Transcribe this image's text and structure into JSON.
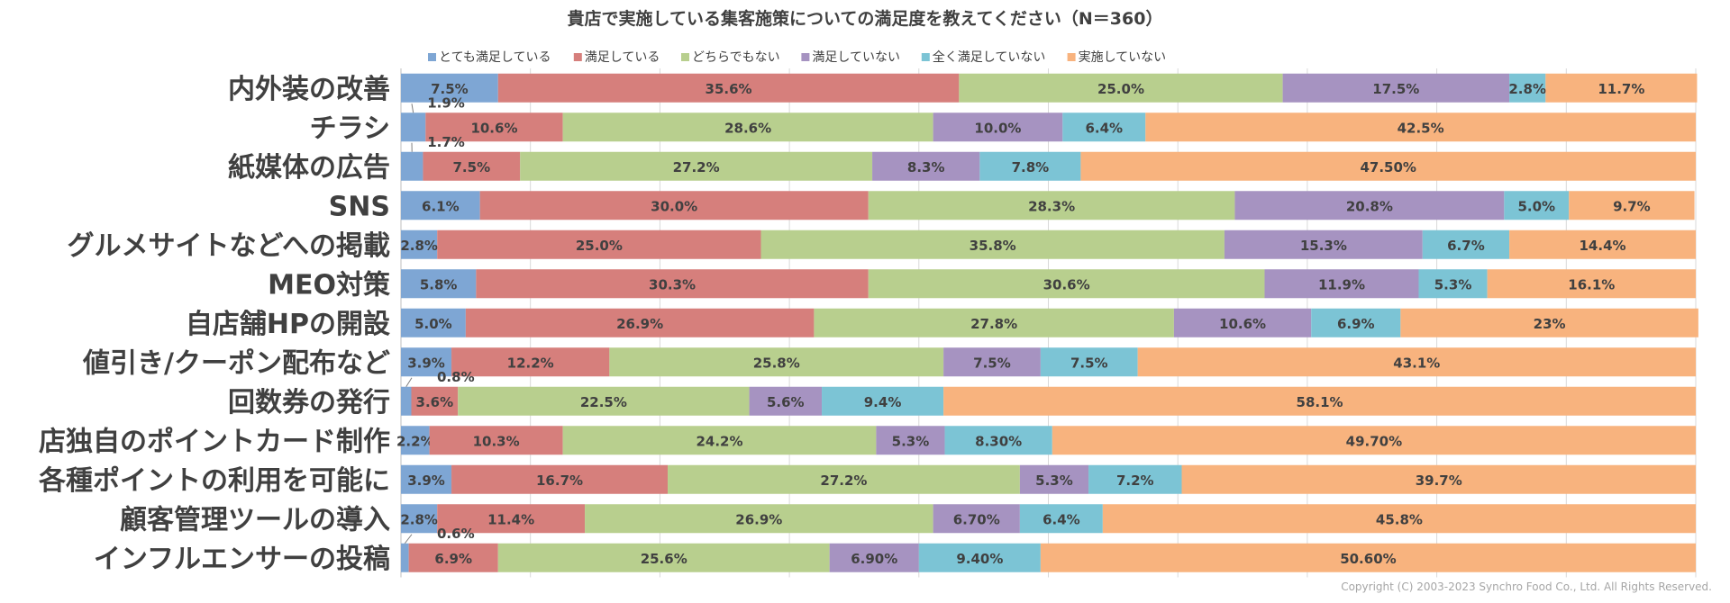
{
  "chart_data": {
    "type": "bar",
    "orientation": "horizontal",
    "stacked": true,
    "title": "貴店で実施している集客施策についての満足度を教えてください（N＝360）",
    "xlim": [
      0,
      100
    ],
    "grid": true,
    "legend_position": "top",
    "copyright": "Copyright (C) 2003-2023 Synchro Food Co., Ltd. All Rights Reserved.",
    "categories": [
      "内外装の改善",
      "チラシ",
      "紙媒体の広告",
      "SNS",
      "グルメサイトなどへの掲載",
      "MEO対策",
      "自店舗HPの開設",
      "値引き/クーポン配布など",
      "回数券の発行",
      "店独自のポイントカード制作",
      "各種ポイントの利用を可能に",
      "顧客管理ツールの導入",
      "インフルエンサーの投稿"
    ],
    "series": [
      {
        "name": "とても満足している",
        "color": "#7ea6d4",
        "values": [
          7.5,
          1.9,
          1.7,
          6.1,
          2.8,
          5.8,
          5.0,
          3.9,
          0.8,
          2.2,
          3.9,
          2.8,
          0.6
        ],
        "labels": [
          "7.5%",
          "1.9%",
          "1.7%",
          "6.1%",
          "2.8%",
          "5.8%",
          "5.0%",
          "3.9%",
          "0.8%",
          "2.2%",
          "3.9%",
          "2.8%",
          "0.6%"
        ]
      },
      {
        "name": "満足している",
        "color": "#d67f7c",
        "values": [
          35.6,
          10.6,
          7.5,
          30.0,
          25.0,
          30.3,
          26.9,
          12.2,
          3.6,
          10.3,
          16.7,
          11.4,
          6.9
        ],
        "labels": [
          "35.6%",
          "10.6%",
          "7.5%",
          "30.0%",
          "25.0%",
          "30.3%",
          "26.9%",
          "12.2%",
          "3.6%",
          "10.3%",
          "16.7%",
          "11.4%",
          "6.9%"
        ]
      },
      {
        "name": "どちらでもない",
        "color": "#b8cf8e",
        "values": [
          25.0,
          28.6,
          27.2,
          28.3,
          35.8,
          30.6,
          27.8,
          25.8,
          22.5,
          24.2,
          27.2,
          26.9,
          25.6
        ],
        "labels": [
          "25.0%",
          "28.6%",
          "27.2%",
          "28.3%",
          "35.8%",
          "30.6%",
          "27.8%",
          "25.8%",
          "22.5%",
          "24.2%",
          "27.2%",
          "26.9%",
          "25.6%"
        ]
      },
      {
        "name": "満足していない",
        "color": "#a693c1",
        "values": [
          17.5,
          10.0,
          8.3,
          20.8,
          15.3,
          11.9,
          10.6,
          7.5,
          5.6,
          5.3,
          5.3,
          6.7,
          6.9
        ],
        "labels": [
          "17.5%",
          "10.0%",
          "8.3%",
          "20.8%",
          "15.3%",
          "11.9%",
          "10.6%",
          "7.5%",
          "5.6%",
          "5.3%",
          "5.3%",
          "6.70%",
          "6.90%"
        ]
      },
      {
        "name": "全く満足していない",
        "color": "#7cc4d5",
        "values": [
          2.8,
          6.4,
          7.8,
          5.0,
          6.7,
          5.3,
          6.9,
          7.5,
          9.4,
          8.3,
          7.2,
          6.4,
          9.4
        ],
        "labels": [
          "2.8%",
          "6.4%",
          "7.8%",
          "5.0%",
          "6.7%",
          "5.3%",
          "6.9%",
          "7.5%",
          "9.4%",
          "8.30%",
          "7.2%",
          "6.4%",
          "9.40%"
        ]
      },
      {
        "name": "実施していない",
        "color": "#f8b37e",
        "values": [
          11.7,
          42.5,
          47.5,
          9.7,
          14.4,
          16.1,
          23,
          43.1,
          58.1,
          49.7,
          39.7,
          45.8,
          50.6
        ],
        "labels": [
          "11.7%",
          "42.5%",
          "47.50%",
          "9.7%",
          "14.4%",
          "16.1%",
          "23%",
          "43.1%",
          "58.1%",
          "49.70%",
          "39.7%",
          "45.8%",
          "50.60%"
        ]
      }
    ]
  }
}
